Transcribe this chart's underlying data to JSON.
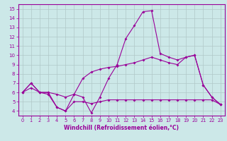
{
  "bg_color": "#cce8e8",
  "line_color": "#990099",
  "grid_color": "#b0c8c8",
  "title": "Windchill (Refroidissement éolien,°C)",
  "xlim": [
    -0.5,
    23.5
  ],
  "ylim": [
    3.5,
    15.5
  ],
  "xticks": [
    0,
    1,
    2,
    3,
    4,
    5,
    6,
    7,
    8,
    9,
    10,
    11,
    12,
    13,
    14,
    15,
    16,
    17,
    18,
    19,
    20,
    21,
    22,
    23
  ],
  "yticks": [
    4,
    5,
    6,
    7,
    8,
    9,
    10,
    11,
    12,
    13,
    14,
    15
  ],
  "line1_x": [
    0,
    1,
    2,
    3,
    4,
    5,
    6,
    7,
    8,
    9,
    10,
    11,
    12,
    13,
    14,
    15,
    16,
    17,
    18,
    19,
    20,
    21,
    22,
    23
  ],
  "line1_y": [
    6.0,
    7.0,
    6.0,
    5.8,
    4.4,
    4.0,
    5.8,
    5.5,
    3.8,
    5.5,
    7.5,
    9.0,
    11.8,
    13.2,
    14.7,
    14.8,
    10.2,
    9.8,
    9.5,
    9.8,
    10.0,
    6.8,
    5.5,
    4.7
  ],
  "line2_x": [
    0,
    1,
    2,
    3,
    4,
    5,
    6,
    7,
    8,
    9,
    10,
    11,
    12,
    13,
    14,
    15,
    16,
    17,
    18,
    19,
    20,
    21,
    22,
    23
  ],
  "line2_y": [
    6.0,
    7.0,
    6.0,
    6.0,
    5.8,
    5.5,
    5.8,
    7.5,
    8.2,
    8.5,
    8.7,
    8.8,
    9.0,
    9.2,
    9.5,
    9.8,
    9.5,
    9.2,
    9.0,
    9.8,
    10.0,
    6.8,
    5.5,
    4.7
  ],
  "line3_x": [
    0,
    1,
    2,
    3,
    4,
    5,
    6,
    7,
    8,
    9,
    10,
    11,
    12,
    13,
    14,
    15,
    16,
    17,
    18,
    19,
    20,
    21,
    22,
    23
  ],
  "line3_y": [
    6.0,
    6.5,
    6.0,
    6.0,
    4.4,
    4.0,
    5.0,
    5.0,
    4.8,
    5.0,
    5.2,
    5.2,
    5.2,
    5.2,
    5.2,
    5.2,
    5.2,
    5.2,
    5.2,
    5.2,
    5.2,
    5.2,
    5.2,
    4.7
  ]
}
